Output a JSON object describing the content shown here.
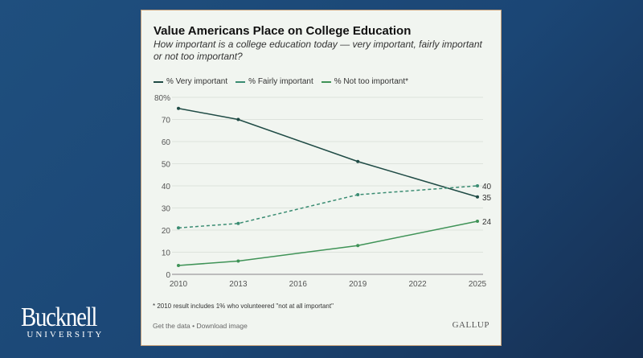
{
  "logo": {
    "name": "Bucknell",
    "sub": "UNIVERSITY"
  },
  "chart_data": {
    "type": "line",
    "title": "Value Americans Place on College Education",
    "subtitle": "How important is a college education today — very important, fairly important or not too important?",
    "x": [
      2010,
      2013,
      2019,
      2025
    ],
    "xticks": [
      "2010",
      "2013",
      "2016",
      "2019",
      "2022",
      "2025"
    ],
    "yticks": [
      "0",
      "10",
      "20",
      "30",
      "40",
      "50",
      "60",
      "70",
      "80%"
    ],
    "ylim": [
      0,
      80
    ],
    "grid": true,
    "legend_position": "top",
    "series": [
      {
        "name": "% Very important",
        "values": [
          75,
          70,
          51,
          35
        ],
        "color": "#1f4b45",
        "dashed": false,
        "end_label": "35"
      },
      {
        "name": "% Fairly important",
        "values": [
          21,
          23,
          36,
          40
        ],
        "color": "#3a8c72",
        "dashed": true,
        "end_label": "40"
      },
      {
        "name": "% Not too important*",
        "values": [
          4,
          6,
          13,
          24
        ],
        "color": "#3f9357",
        "dashed": false,
        "end_label": "24"
      }
    ],
    "footnote": "* 2010 result includes 1% who volunteered \"not at all important\"",
    "links": "Get the data • Download image",
    "source_logo": "GALLUP"
  }
}
